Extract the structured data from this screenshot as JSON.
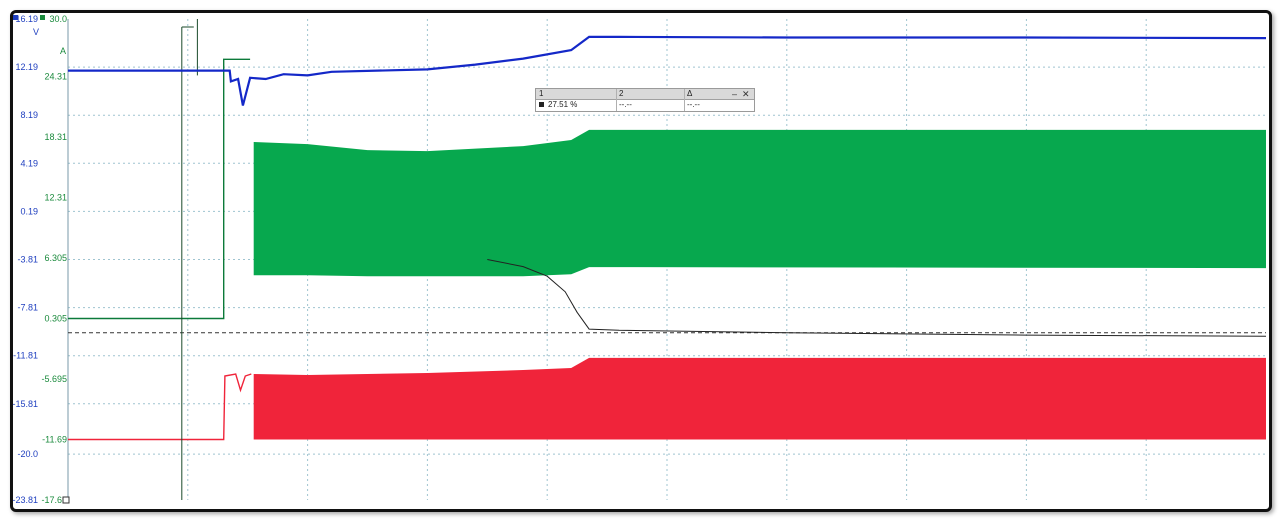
{
  "chart_data": {
    "type": "line",
    "title": "",
    "xlabel": "",
    "grid": true,
    "axes": [
      {
        "name": "left-axis-volts",
        "unit": "V",
        "unit_color": "#1f3fbf",
        "ticks": [
          "16.19",
          "12.19",
          "8.19",
          "4.19",
          "0.19",
          "-3.81",
          "-7.81",
          "-11.81",
          "-15.81",
          "-20.0",
          "-23.81"
        ],
        "range": [
          -23.81,
          16.19
        ]
      },
      {
        "name": "right-axis-amps",
        "unit": "A",
        "unit_color": "#1a8a3c",
        "ticks": [
          "30.0",
          "24.31",
          "18.31",
          "12.31",
          "6.305",
          "0.305",
          "-5.695",
          "-11.69",
          "-17.69"
        ],
        "range": [
          -17.69,
          30.0
        ]
      }
    ],
    "x_range": [
      0,
      100
    ],
    "series": [
      {
        "color": "#1428c8",
        "axis": "V",
        "points": [
          [
            0,
            11.9
          ],
          [
            13.5,
            11.9
          ],
          [
            13.6,
            11.0
          ],
          [
            14.2,
            11.2
          ],
          [
            14.6,
            9.0
          ],
          [
            15.2,
            11.3
          ],
          [
            16.5,
            11.2
          ],
          [
            18,
            11.6
          ],
          [
            20,
            11.5
          ],
          [
            22,
            11.8
          ],
          [
            30,
            12.0
          ],
          [
            34,
            12.4
          ],
          [
            38,
            12.9
          ],
          [
            42,
            13.6
          ],
          [
            43.5,
            14.7
          ],
          [
            46,
            14.7
          ],
          [
            60,
            14.65
          ],
          [
            80,
            14.65
          ],
          [
            100,
            14.6
          ]
        ]
      },
      {
        "color": "#07a84e",
        "axis": "A",
        "envelope_top": [
          [
            15.5,
            17.8
          ],
          [
            20,
            17.6
          ],
          [
            25,
            17.0
          ],
          [
            30,
            16.9
          ],
          [
            38,
            17.4
          ],
          [
            42,
            18.0
          ],
          [
            43.5,
            19.0
          ],
          [
            46,
            19.0
          ],
          [
            60,
            19.0
          ],
          [
            80,
            19.0
          ],
          [
            100,
            19.0
          ]
        ],
        "envelope_bottom": [
          [
            15.5,
            4.6
          ],
          [
            20,
            4.6
          ],
          [
            25,
            4.5
          ],
          [
            30,
            4.5
          ],
          [
            38,
            4.5
          ],
          [
            42,
            4.7
          ],
          [
            43.5,
            5.4
          ],
          [
            100,
            5.3
          ]
        ],
        "pre_segment": [
          [
            0,
            0.305
          ],
          [
            13.0,
            0.305
          ],
          [
            13.0,
            26.0
          ],
          [
            15.2,
            26.0
          ]
        ]
      },
      {
        "color": "#f0243a",
        "axis": "A",
        "envelope_top": [
          [
            15.5,
            -5.2
          ],
          [
            20,
            -5.3
          ],
          [
            30,
            -5.1
          ],
          [
            38,
            -4.8
          ],
          [
            42,
            -4.6
          ],
          [
            43.5,
            -3.6
          ],
          [
            100,
            -3.6
          ]
        ],
        "envelope_bottom": [
          [
            15.5,
            -11.69
          ],
          [
            100,
            -11.69
          ]
        ],
        "pre_segment": [
          [
            0,
            -11.69
          ],
          [
            13.0,
            -11.69
          ],
          [
            13.1,
            -5.4
          ],
          [
            14.0,
            -5.2
          ],
          [
            14.4,
            -6.8
          ],
          [
            14.8,
            -5.4
          ],
          [
            15.3,
            -5.2
          ]
        ]
      },
      {
        "color": "#222222",
        "axis": "V",
        "points": [
          [
            35,
            -3.81
          ],
          [
            38,
            -4.4
          ],
          [
            40,
            -5.2
          ],
          [
            41.5,
            -6.5
          ],
          [
            42.5,
            -8.2
          ],
          [
            43.5,
            -9.6
          ],
          [
            46,
            -9.7
          ],
          [
            60,
            -9.9
          ],
          [
            80,
            -10.1
          ],
          [
            100,
            -10.2
          ]
        ],
        "dash_level": -9.9
      }
    ],
    "cursor_panel": {
      "col1": "1",
      "col2": "2",
      "col3": "Δ",
      "row_col1": "27.51 %",
      "row_col2": "--.--",
      "row_col3": "--.--",
      "minimize": "–",
      "close": "✕"
    }
  }
}
